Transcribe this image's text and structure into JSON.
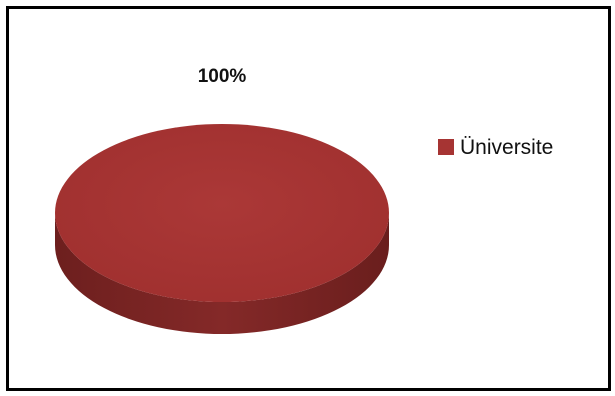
{
  "chart_data": {
    "type": "pie",
    "style": "3d",
    "categories": [
      "Üniversite"
    ],
    "values": [
      100
    ],
    "data_labels": [
      "100%"
    ],
    "legend_position": "right",
    "colors": {
      "slice_top": "#a63433",
      "slice_side": "#7b2524",
      "legend_swatch": "#a63433"
    }
  }
}
